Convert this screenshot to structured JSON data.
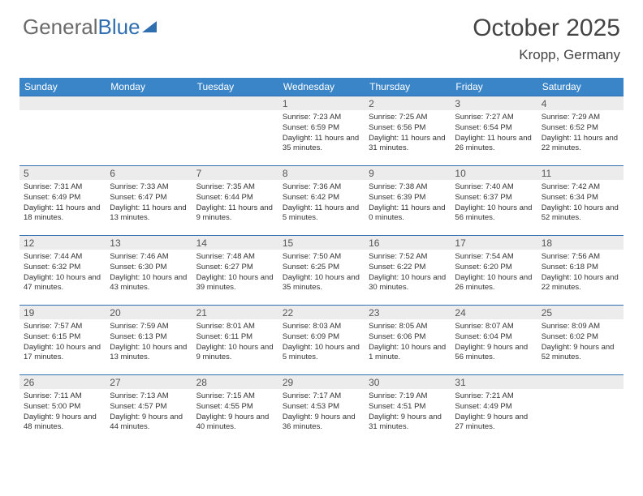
{
  "logo": {
    "part1": "General",
    "part2": "Blue"
  },
  "title": "October 2025",
  "location": "Kropp, Germany",
  "colors": {
    "header_bg": "#3a85c7",
    "header_text": "#ffffff",
    "daynum_bg": "#ececec",
    "border": "#2f6fb0",
    "logo_gray": "#6a6a6a",
    "logo_blue": "#2f6fb0",
    "text": "#333333"
  },
  "weekdays": [
    "Sunday",
    "Monday",
    "Tuesday",
    "Wednesday",
    "Thursday",
    "Friday",
    "Saturday"
  ],
  "cells": [
    {
      "n": "",
      "t": ""
    },
    {
      "n": "",
      "t": ""
    },
    {
      "n": "",
      "t": ""
    },
    {
      "n": "1",
      "t": "Sunrise: 7:23 AM\nSunset: 6:59 PM\nDaylight: 11 hours and 35 minutes."
    },
    {
      "n": "2",
      "t": "Sunrise: 7:25 AM\nSunset: 6:56 PM\nDaylight: 11 hours and 31 minutes."
    },
    {
      "n": "3",
      "t": "Sunrise: 7:27 AM\nSunset: 6:54 PM\nDaylight: 11 hours and 26 minutes."
    },
    {
      "n": "4",
      "t": "Sunrise: 7:29 AM\nSunset: 6:52 PM\nDaylight: 11 hours and 22 minutes."
    },
    {
      "n": "5",
      "t": "Sunrise: 7:31 AM\nSunset: 6:49 PM\nDaylight: 11 hours and 18 minutes."
    },
    {
      "n": "6",
      "t": "Sunrise: 7:33 AM\nSunset: 6:47 PM\nDaylight: 11 hours and 13 minutes."
    },
    {
      "n": "7",
      "t": "Sunrise: 7:35 AM\nSunset: 6:44 PM\nDaylight: 11 hours and 9 minutes."
    },
    {
      "n": "8",
      "t": "Sunrise: 7:36 AM\nSunset: 6:42 PM\nDaylight: 11 hours and 5 minutes."
    },
    {
      "n": "9",
      "t": "Sunrise: 7:38 AM\nSunset: 6:39 PM\nDaylight: 11 hours and 0 minutes."
    },
    {
      "n": "10",
      "t": "Sunrise: 7:40 AM\nSunset: 6:37 PM\nDaylight: 10 hours and 56 minutes."
    },
    {
      "n": "11",
      "t": "Sunrise: 7:42 AM\nSunset: 6:34 PM\nDaylight: 10 hours and 52 minutes."
    },
    {
      "n": "12",
      "t": "Sunrise: 7:44 AM\nSunset: 6:32 PM\nDaylight: 10 hours and 47 minutes."
    },
    {
      "n": "13",
      "t": "Sunrise: 7:46 AM\nSunset: 6:30 PM\nDaylight: 10 hours and 43 minutes."
    },
    {
      "n": "14",
      "t": "Sunrise: 7:48 AM\nSunset: 6:27 PM\nDaylight: 10 hours and 39 minutes."
    },
    {
      "n": "15",
      "t": "Sunrise: 7:50 AM\nSunset: 6:25 PM\nDaylight: 10 hours and 35 minutes."
    },
    {
      "n": "16",
      "t": "Sunrise: 7:52 AM\nSunset: 6:22 PM\nDaylight: 10 hours and 30 minutes."
    },
    {
      "n": "17",
      "t": "Sunrise: 7:54 AM\nSunset: 6:20 PM\nDaylight: 10 hours and 26 minutes."
    },
    {
      "n": "18",
      "t": "Sunrise: 7:56 AM\nSunset: 6:18 PM\nDaylight: 10 hours and 22 minutes."
    },
    {
      "n": "19",
      "t": "Sunrise: 7:57 AM\nSunset: 6:15 PM\nDaylight: 10 hours and 17 minutes."
    },
    {
      "n": "20",
      "t": "Sunrise: 7:59 AM\nSunset: 6:13 PM\nDaylight: 10 hours and 13 minutes."
    },
    {
      "n": "21",
      "t": "Sunrise: 8:01 AM\nSunset: 6:11 PM\nDaylight: 10 hours and 9 minutes."
    },
    {
      "n": "22",
      "t": "Sunrise: 8:03 AM\nSunset: 6:09 PM\nDaylight: 10 hours and 5 minutes."
    },
    {
      "n": "23",
      "t": "Sunrise: 8:05 AM\nSunset: 6:06 PM\nDaylight: 10 hours and 1 minute."
    },
    {
      "n": "24",
      "t": "Sunrise: 8:07 AM\nSunset: 6:04 PM\nDaylight: 9 hours and 56 minutes."
    },
    {
      "n": "25",
      "t": "Sunrise: 8:09 AM\nSunset: 6:02 PM\nDaylight: 9 hours and 52 minutes."
    },
    {
      "n": "26",
      "t": "Sunrise: 7:11 AM\nSunset: 5:00 PM\nDaylight: 9 hours and 48 minutes."
    },
    {
      "n": "27",
      "t": "Sunrise: 7:13 AM\nSunset: 4:57 PM\nDaylight: 9 hours and 44 minutes."
    },
    {
      "n": "28",
      "t": "Sunrise: 7:15 AM\nSunset: 4:55 PM\nDaylight: 9 hours and 40 minutes."
    },
    {
      "n": "29",
      "t": "Sunrise: 7:17 AM\nSunset: 4:53 PM\nDaylight: 9 hours and 36 minutes."
    },
    {
      "n": "30",
      "t": "Sunrise: 7:19 AM\nSunset: 4:51 PM\nDaylight: 9 hours and 31 minutes."
    },
    {
      "n": "31",
      "t": "Sunrise: 7:21 AM\nSunset: 4:49 PM\nDaylight: 9 hours and 27 minutes."
    },
    {
      "n": "",
      "t": ""
    }
  ]
}
